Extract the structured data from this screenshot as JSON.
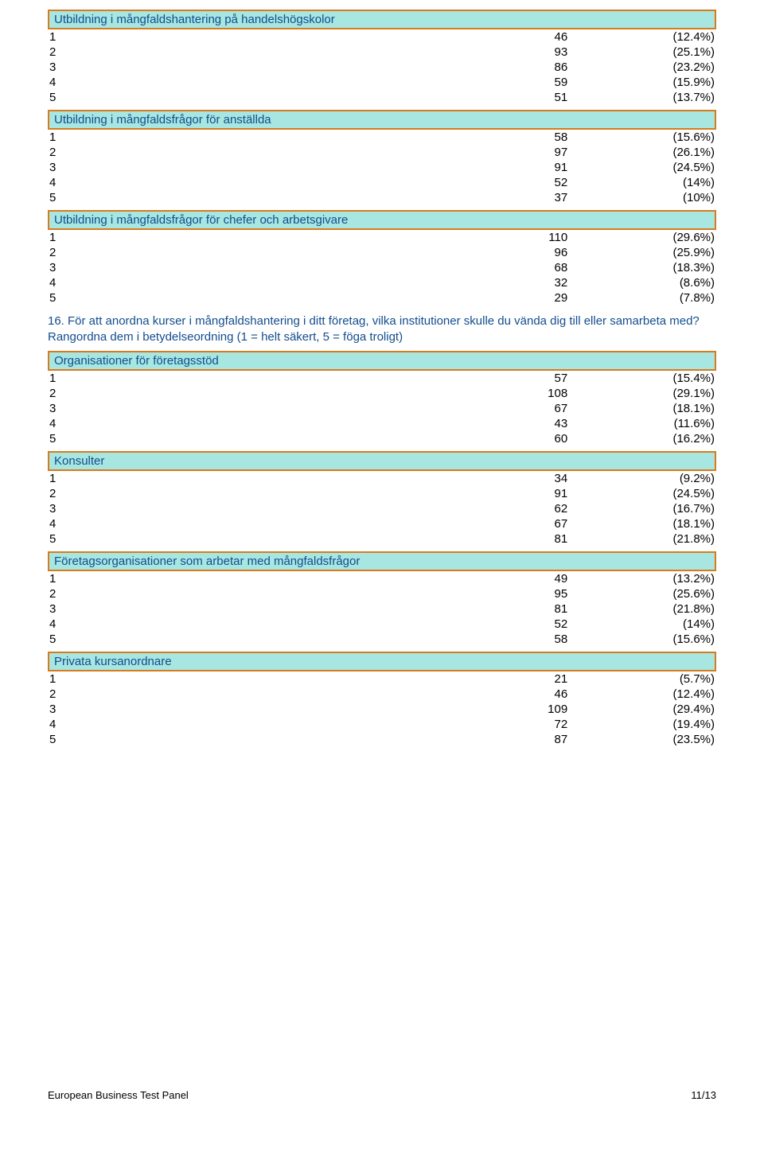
{
  "sections": [
    {
      "title": "Utbildning i mångfaldshantering på handelshögskolor",
      "rows": [
        {
          "label": "1",
          "count": "46",
          "pct": "(12.4%)"
        },
        {
          "label": "2",
          "count": "93",
          "pct": "(25.1%)"
        },
        {
          "label": "3",
          "count": "86",
          "pct": "(23.2%)"
        },
        {
          "label": "4",
          "count": "59",
          "pct": "(15.9%)"
        },
        {
          "label": "5",
          "count": "51",
          "pct": "(13.7%)"
        }
      ]
    },
    {
      "title": "Utbildning i mångfaldsfrågor för anställda",
      "rows": [
        {
          "label": "1",
          "count": "58",
          "pct": "(15.6%)"
        },
        {
          "label": "2",
          "count": "97",
          "pct": "(26.1%)"
        },
        {
          "label": "3",
          "count": "91",
          "pct": "(24.5%)"
        },
        {
          "label": "4",
          "count": "52",
          "pct": "(14%)"
        },
        {
          "label": "5",
          "count": "37",
          "pct": "(10%)"
        }
      ]
    },
    {
      "title": "Utbildning i mångfaldsfrågor för chefer och arbetsgivare",
      "rows": [
        {
          "label": "1",
          "count": "110",
          "pct": "(29.6%)"
        },
        {
          "label": "2",
          "count": "96",
          "pct": "(25.9%)"
        },
        {
          "label": "3",
          "count": "68",
          "pct": "(18.3%)"
        },
        {
          "label": "4",
          "count": "32",
          "pct": "(8.6%)"
        },
        {
          "label": "5",
          "count": "29",
          "pct": "(7.8%)"
        }
      ]
    }
  ],
  "question": "16. För att anordna kurser i mångfaldshantering i ditt företag, vilka institutioner skulle du vända dig till eller samarbeta med? Rangordna dem i betydelseordning (1 = helt säkert, 5 = föga troligt)",
  "sections2": [
    {
      "title": "Organisationer för företagsstöd",
      "rows": [
        {
          "label": "1",
          "count": "57",
          "pct": "(15.4%)"
        },
        {
          "label": "2",
          "count": "108",
          "pct": "(29.1%)"
        },
        {
          "label": "3",
          "count": "67",
          "pct": "(18.1%)"
        },
        {
          "label": "4",
          "count": "43",
          "pct": "(11.6%)"
        },
        {
          "label": "5",
          "count": "60",
          "pct": "(16.2%)"
        }
      ]
    },
    {
      "title": "Konsulter",
      "rows": [
        {
          "label": "1",
          "count": "34",
          "pct": "(9.2%)"
        },
        {
          "label": "2",
          "count": "91",
          "pct": "(24.5%)"
        },
        {
          "label": "3",
          "count": "62",
          "pct": "(16.7%)"
        },
        {
          "label": "4",
          "count": "67",
          "pct": "(18.1%)"
        },
        {
          "label": "5",
          "count": "81",
          "pct": "(21.8%)"
        }
      ]
    },
    {
      "title": "Företagsorganisationer som arbetar med mångfaldsfrågor",
      "rows": [
        {
          "label": "1",
          "count": "49",
          "pct": "(13.2%)"
        },
        {
          "label": "2",
          "count": "95",
          "pct": "(25.6%)"
        },
        {
          "label": "3",
          "count": "81",
          "pct": "(21.8%)"
        },
        {
          "label": "4",
          "count": "52",
          "pct": "(14%)"
        },
        {
          "label": "5",
          "count": "58",
          "pct": "(15.6%)"
        }
      ]
    },
    {
      "title": "Privata kursanordnare",
      "rows": [
        {
          "label": "1",
          "count": "21",
          "pct": "(5.7%)"
        },
        {
          "label": "2",
          "count": "46",
          "pct": "(12.4%)"
        },
        {
          "label": "3",
          "count": "109",
          "pct": "(29.4%)"
        },
        {
          "label": "4",
          "count": "72",
          "pct": "(19.4%)"
        },
        {
          "label": "5",
          "count": "87",
          "pct": "(23.5%)"
        }
      ]
    }
  ],
  "footer": {
    "left": "European Business Test Panel",
    "right": "11/13"
  }
}
